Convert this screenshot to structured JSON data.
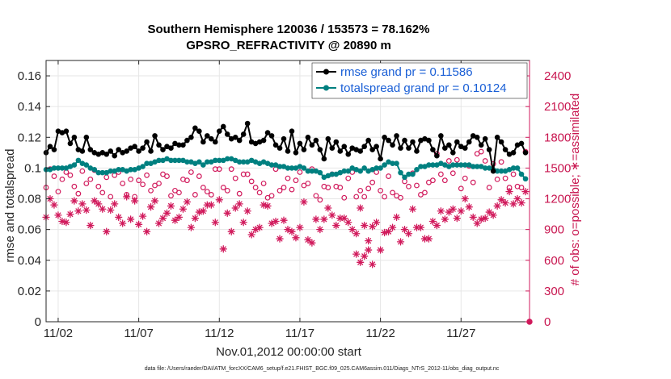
{
  "chart_data": {
    "type": "line",
    "title": "Southern Hemisphere 120036 / 153573 = 78.162%",
    "subtitle": "GPSRO_REFRACTIVITY @ 20890 m",
    "xlabel": "Nov.01,2012 00:00:00 start",
    "ylabel": "rmse and totalspread",
    "ylabel_right": "# of obs: o=possible; ∗=assimilated",
    "footnote": "data file: /Users/raeder/DAI/ATM_forcXX/CAM6_setup/f.e21.FHIST_BGC.f09_025.CAM6assim.011/Diags_NTrS_2012-11/obs_diag_output.nc",
    "xlim": [
      1.25,
      31.25
    ],
    "ylim": [
      0,
      0.17
    ],
    "ylim_right": [
      0,
      2550
    ],
    "x_ticks": [
      2,
      7,
      12,
      17,
      22,
      27
    ],
    "x_tick_labels": [
      "11/02",
      "11/07",
      "11/12",
      "11/17",
      "11/22",
      "11/27"
    ],
    "y_ticks": [
      0,
      0.02,
      0.04,
      0.06,
      0.08,
      0.1,
      0.12,
      0.14,
      0.16
    ],
    "y_tick_labels": [
      "0",
      "0.02",
      "0.04",
      "0.06",
      "0.08",
      "0.1",
      "0.12",
      "0.14",
      "0.16"
    ],
    "y_ticks_right": [
      0,
      300,
      600,
      900,
      1200,
      1500,
      1800,
      2100,
      2400
    ],
    "y_tick_labels_right": [
      "0",
      "300",
      "600",
      "900",
      "1200",
      "1500",
      "1800",
      "2100",
      "2400"
    ],
    "grid": true,
    "legend_position": "top-right",
    "colors": {
      "rmse": "#000000",
      "spread": "#008080",
      "obs": "#d11a5c",
      "axis": "#262626",
      "grid": "#e6e6e6"
    },
    "x": [
      1.25,
      1.5,
      1.75,
      2.0,
      2.25,
      2.5,
      2.75,
      3.0,
      3.25,
      3.5,
      3.75,
      4.0,
      4.25,
      4.5,
      4.75,
      5.0,
      5.25,
      5.5,
      5.75,
      6.0,
      6.25,
      6.5,
      6.75,
      7.0,
      7.25,
      7.5,
      7.75,
      8.0,
      8.25,
      8.5,
      8.75,
      9.0,
      9.25,
      9.5,
      9.75,
      10.0,
      10.25,
      10.5,
      10.75,
      11.0,
      11.25,
      11.5,
      11.75,
      12.0,
      12.25,
      12.5,
      12.75,
      13.0,
      13.25,
      13.5,
      13.75,
      14.0,
      14.25,
      14.5,
      14.75,
      15.0,
      15.25,
      15.5,
      15.75,
      16.0,
      16.25,
      16.5,
      16.75,
      17.0,
      17.25,
      17.5,
      17.75,
      18.0,
      18.25,
      18.5,
      18.75,
      19.0,
      19.25,
      19.5,
      19.75,
      20.0,
      20.25,
      20.5,
      20.75,
      21.0,
      21.25,
      21.5,
      21.75,
      22.0,
      22.25,
      22.5,
      22.75,
      23.0,
      23.25,
      23.5,
      23.75,
      24.0,
      24.25,
      24.5,
      24.75,
      25.0,
      25.25,
      25.5,
      25.75,
      26.0,
      26.25,
      26.5,
      26.75,
      27.0,
      27.25,
      27.5,
      27.75,
      28.0,
      28.25,
      28.5,
      28.75,
      29.0,
      29.25,
      29.5,
      29.75,
      30.0,
      30.25,
      30.5,
      30.75,
      31.0
    ],
    "series": [
      {
        "name": "rmse grand pr = 0.11586",
        "marker": "dot",
        "axis": "left",
        "values": [
          0.11,
          0.114,
          0.112,
          0.124,
          0.123,
          0.124,
          0.116,
          0.12,
          0.112,
          0.111,
          0.12,
          0.112,
          0.11,
          0.109,
          0.11,
          0.109,
          0.111,
          0.108,
          0.112,
          0.11,
          0.111,
          0.113,
          0.114,
          0.111,
          0.113,
          0.117,
          0.111,
          0.121,
          0.115,
          0.112,
          0.114,
          0.113,
          0.116,
          0.115,
          0.115,
          0.118,
          0.12,
          0.126,
          0.124,
          0.117,
          0.121,
          0.119,
          0.117,
          0.124,
          0.127,
          0.122,
          0.119,
          0.12,
          0.118,
          0.122,
          0.129,
          0.117,
          0.116,
          0.117,
          0.118,
          0.123,
          0.121,
          0.115,
          0.113,
          0.119,
          0.111,
          0.124,
          0.11,
          0.116,
          0.112,
          0.12,
          0.115,
          0.118,
          0.112,
          0.106,
          0.119,
          0.113,
          0.117,
          0.111,
          0.114,
          0.109,
          0.113,
          0.112,
          0.111,
          0.114,
          0.118,
          0.112,
          0.114,
          0.106,
          0.12,
          0.118,
          0.115,
          0.121,
          0.113,
          0.118,
          0.113,
          0.117,
          0.111,
          0.118,
          0.119,
          0.118,
          0.112,
          0.108,
          0.121,
          0.113,
          0.115,
          0.11,
          0.117,
          0.114,
          0.113,
          0.117,
          0.121,
          0.12,
          0.115,
          0.119,
          0.112,
          0.098,
          0.12,
          0.117,
          0.112,
          0.109,
          0.11,
          0.115,
          0.116,
          0.11
        ]
      },
      {
        "name": "totalspread grand pr = 0.10124",
        "marker": "dot",
        "axis": "left",
        "values": [
          0.099,
          0.099,
          0.1,
          0.1,
          0.1,
          0.1,
          0.101,
          0.102,
          0.105,
          0.103,
          0.102,
          0.1,
          0.099,
          0.097,
          0.097,
          0.097,
          0.098,
          0.098,
          0.099,
          0.099,
          0.098,
          0.099,
          0.099,
          0.1,
          0.101,
          0.103,
          0.103,
          0.104,
          0.105,
          0.105,
          0.106,
          0.105,
          0.105,
          0.105,
          0.105,
          0.104,
          0.104,
          0.103,
          0.104,
          0.102,
          0.104,
          0.104,
          0.105,
          0.105,
          0.105,
          0.106,
          0.106,
          0.105,
          0.104,
          0.104,
          0.104,
          0.105,
          0.104,
          0.103,
          0.104,
          0.103,
          0.102,
          0.102,
          0.101,
          0.101,
          0.1,
          0.1,
          0.1,
          0.101,
          0.1,
          0.098,
          0.098,
          0.098,
          0.097,
          0.094,
          0.095,
          0.096,
          0.096,
          0.097,
          0.098,
          0.098,
          0.1,
          0.099,
          0.098,
          0.1,
          0.098,
          0.099,
          0.1,
          0.1,
          0.102,
          0.104,
          0.103,
          0.103,
          0.097,
          0.094,
          0.096,
          0.096,
          0.099,
          0.101,
          0.101,
          0.102,
          0.102,
          0.102,
          0.103,
          0.102,
          0.101,
          0.102,
          0.102,
          0.102,
          0.102,
          0.102,
          0.101,
          0.101,
          0.101,
          0.1,
          0.1,
          0.099,
          0.098,
          0.098,
          0.098,
          0.099,
          0.1,
          0.1,
          0.096,
          0.093
        ]
      },
      {
        "name": "possible",
        "marker": "circle",
        "axis": "right",
        "values": [
          1310,
          1490,
          1420,
          1270,
          1390,
          1460,
          1430,
          1320,
          1250,
          1470,
          1350,
          1390,
          1480,
          1320,
          1260,
          1410,
          1220,
          1430,
          1460,
          1350,
          1240,
          1390,
          1220,
          1380,
          1340,
          1430,
          1280,
          1330,
          1350,
          1440,
          1420,
          1230,
          1280,
          1260,
          1390,
          1380,
          1460,
          1240,
          1420,
          1310,
          1270,
          1240,
          1490,
          1490,
          1310,
          1280,
          1490,
          1400,
          1250,
          1440,
          1440,
          1370,
          1310,
          1260,
          1350,
          1210,
          1230,
          1490,
          1280,
          1310,
          1400,
          1290,
          1380,
          1460,
          1330,
          1350,
          1490,
          1230,
          1190,
          1320,
          1310,
          1440,
          1320,
          1310,
          1210,
          1400,
          1460,
          1220,
          1280,
          1220,
          1300,
          1360,
          1460,
          1280,
          1220,
          1420,
          1260,
          1230,
          1210,
          1370,
          1320,
          1450,
          1330,
          1240,
          1260,
          1360,
          1380,
          1640,
          1440,
          1380,
          1570,
          1450,
          1580,
          1300,
          1400,
          1520,
          1360,
          1640,
          1660,
          1570,
          1310,
          1540,
          1390,
          1560,
          1400,
          1310,
          1440,
          1320,
          1310,
          1660
        ]
      },
      {
        "name": "assimilated",
        "marker": "asterisk",
        "axis": "right",
        "values": [
          1020,
          1200,
          1140,
          1040,
          980,
          970,
          1050,
          1180,
          1080,
          1150,
          1090,
          940,
          1180,
          1150,
          1100,
          880,
          1090,
          1150,
          1020,
          960,
          1220,
          1000,
          1180,
          950,
          1030,
          880,
          1120,
          1180,
          960,
          1010,
          1060,
          1130,
          990,
          1020,
          1100,
          1170,
          920,
          1010,
          1070,
          1080,
          1140,
          1140,
          970,
          1190,
          710,
          1060,
          880,
          1110,
          1150,
          970,
          1080,
          850,
          900,
          920,
          1140,
          1130,
          960,
          980,
          810,
          990,
          900,
          880,
          820,
          920,
          1170,
          800,
          770,
          1000,
          900,
          1000,
          1110,
          1040,
          940,
          1010,
          1010,
          970,
          900,
          860,
          1110,
          940,
          790,
          930,
          970,
          700,
          870,
          880,
          920,
          1020,
          780,
          900,
          860,
          1100,
          920,
          920,
          810,
          810,
          980,
          940,
          1080,
          1000,
          1070,
          1100,
          1010,
          1080,
          1200,
          1120,
          1020,
          960,
          1000,
          1010,
          1070,
          1040,
          1130,
          1190,
          1160,
          1270,
          1150,
          1200,
          1160,
          1270
        ]
      }
    ],
    "extra_points": [
      {
        "x": 20.75,
        "value": 580,
        "series": "assimilated"
      },
      {
        "x": 21.0,
        "value": 640,
        "series": "assimilated"
      },
      {
        "x": 21.25,
        "value": 700,
        "series": "assimilated"
      },
      {
        "x": 21.5,
        "value": 560,
        "series": "assimilated"
      },
      {
        "x": 20.5,
        "value": 660,
        "series": "assimilated"
      },
      {
        "x": 31.25,
        "value": 0,
        "series": "possible"
      }
    ]
  }
}
